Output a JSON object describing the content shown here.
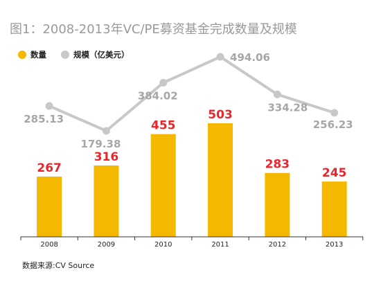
{
  "chart_data": {
    "type": "bar",
    "title": "图1：2008-2013年VC/PE募资基金完成数量及规模",
    "categories": [
      "2008",
      "2009",
      "2010",
      "2011",
      "2012",
      "2013"
    ],
    "series": [
      {
        "name": "数量",
        "type": "bar",
        "color": "#f5b800",
        "values": [
          267,
          316,
          455,
          503,
          283,
          245
        ]
      },
      {
        "name": "规模（亿美元）",
        "type": "line",
        "color": "#c8c8c8",
        "values": [
          285.13,
          179.38,
          384.02,
          494.06,
          334.28,
          256.23
        ]
      }
    ],
    "bar_label_color": "#e8262b",
    "line_label_color": "#a6a6a6",
    "grid": false,
    "legend_position": "top-left",
    "source": "数据来源:CV Source"
  }
}
